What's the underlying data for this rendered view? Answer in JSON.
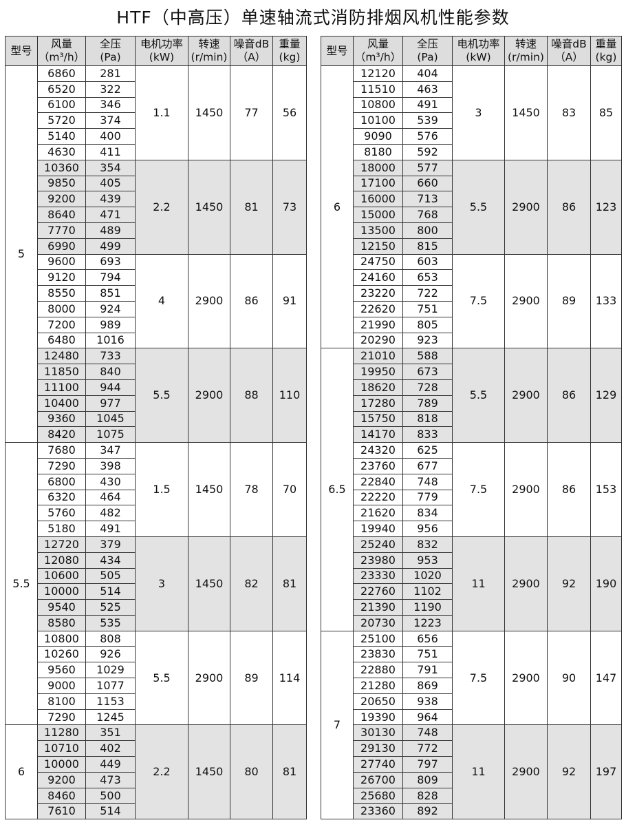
{
  "title": "HTF（中高压）单速轴流式消防排烟风机性能参数",
  "headers": [
    "型号",
    "风量\n（m³/h）",
    "全压\n(Pa)",
    "电机功率\n(kW)",
    "转速\n(r/min)",
    "噪音dB\n（A）",
    "重量\n(kg)"
  ],
  "tables": [
    {
      "models": [
        {
          "model": "5",
          "groups": [
            {
              "power": "1.1",
              "speed": "1450",
              "noise": "77",
              "weight": "56",
              "rows": [
                [
                  "6860",
                  "281"
                ],
                [
                  "6520",
                  "322"
                ],
                [
                  "6100",
                  "346"
                ],
                [
                  "5720",
                  "374"
                ],
                [
                  "5140",
                  "400"
                ],
                [
                  "4630",
                  "411"
                ]
              ]
            },
            {
              "power": "2.2",
              "speed": "1450",
              "noise": "81",
              "weight": "73",
              "rows": [
                [
                  "10360",
                  "354"
                ],
                [
                  "9850",
                  "405"
                ],
                [
                  "9200",
                  "439"
                ],
                [
                  "8640",
                  "471"
                ],
                [
                  "7770",
                  "489"
                ],
                [
                  "6990",
                  "499"
                ]
              ]
            },
            {
              "power": "4",
              "speed": "2900",
              "noise": "86",
              "weight": "91",
              "rows": [
                [
                  "9600",
                  "693"
                ],
                [
                  "9120",
                  "794"
                ],
                [
                  "8550",
                  "851"
                ],
                [
                  "8000",
                  "924"
                ],
                [
                  "7200",
                  "989"
                ],
                [
                  "6480",
                  "1016"
                ]
              ]
            },
            {
              "power": "5.5",
              "speed": "2900",
              "noise": "88",
              "weight": "110",
              "rows": [
                [
                  "12480",
                  "733"
                ],
                [
                  "11850",
                  "840"
                ],
                [
                  "11100",
                  "944"
                ],
                [
                  "10400",
                  "977"
                ],
                [
                  "9360",
                  "1045"
                ],
                [
                  "8420",
                  "1075"
                ]
              ]
            }
          ]
        },
        {
          "model": "5.5",
          "groups": [
            {
              "power": "1.5",
              "speed": "1450",
              "noise": "78",
              "weight": "70",
              "rows": [
                [
                  "7680",
                  "347"
                ],
                [
                  "7290",
                  "398"
                ],
                [
                  "6800",
                  "430"
                ],
                [
                  "6320",
                  "464"
                ],
                [
                  "5760",
                  "482"
                ],
                [
                  "5180",
                  "491"
                ]
              ]
            },
            {
              "power": "3",
              "speed": "1450",
              "noise": "82",
              "weight": "81",
              "rows": [
                [
                  "12720",
                  "379"
                ],
                [
                  "12080",
                  "434"
                ],
                [
                  "10600",
                  "505"
                ],
                [
                  "10000",
                  "514"
                ],
                [
                  "9540",
                  "525"
                ],
                [
                  "8580",
                  "535"
                ]
              ]
            },
            {
              "power": "5.5",
              "speed": "2900",
              "noise": "89",
              "weight": "114",
              "rows": [
                [
                  "10800",
                  "808"
                ],
                [
                  "10260",
                  "926"
                ],
                [
                  "9560",
                  "1029"
                ],
                [
                  "9000",
                  "1077"
                ],
                [
                  "8100",
                  "1153"
                ],
                [
                  "7290",
                  "1245"
                ]
              ]
            }
          ]
        },
        {
          "model": "6",
          "groups": [
            {
              "power": "2.2",
              "speed": "1450",
              "noise": "80",
              "weight": "81",
              "rows": [
                [
                  "11280",
                  "351"
                ],
                [
                  "10710",
                  "402"
                ],
                [
                  "10000",
                  "449"
                ],
                [
                  "9200",
                  "473"
                ],
                [
                  "8460",
                  "500"
                ],
                [
                  "7610",
                  "514"
                ]
              ]
            }
          ]
        }
      ]
    },
    {
      "models": [
        {
          "model": "6",
          "groups": [
            {
              "power": "3",
              "speed": "1450",
              "noise": "83",
              "weight": "85",
              "rows": [
                [
                  "12120",
                  "404"
                ],
                [
                  "11510",
                  "463"
                ],
                [
                  "10800",
                  "491"
                ],
                [
                  "10100",
                  "539"
                ],
                [
                  "9090",
                  "576"
                ],
                [
                  "8180",
                  "592"
                ]
              ]
            },
            {
              "power": "5.5",
              "speed": "2900",
              "noise": "86",
              "weight": "123",
              "rows": [
                [
                  "18000",
                  "577"
                ],
                [
                  "17100",
                  "660"
                ],
                [
                  "16000",
                  "713"
                ],
                [
                  "15000",
                  "768"
                ],
                [
                  "13500",
                  "800"
                ],
                [
                  "12150",
                  "815"
                ]
              ]
            },
            {
              "power": "7.5",
              "speed": "2900",
              "noise": "89",
              "weight": "133",
              "rows": [
                [
                  "24750",
                  "603"
                ],
                [
                  "24160",
                  "653"
                ],
                [
                  "23220",
                  "722"
                ],
                [
                  "22620",
                  "751"
                ],
                [
                  "21990",
                  "805"
                ],
                [
                  "20290",
                  "923"
                ]
              ]
            }
          ]
        },
        {
          "model": "6.5",
          "groups": [
            {
              "power": "5.5",
              "speed": "2900",
              "noise": "86",
              "weight": "129",
              "rows": [
                [
                  "21010",
                  "588"
                ],
                [
                  "19950",
                  "673"
                ],
                [
                  "18620",
                  "728"
                ],
                [
                  "17280",
                  "789"
                ],
                [
                  "15750",
                  "818"
                ],
                [
                  "14170",
                  "833"
                ]
              ]
            },
            {
              "power": "7.5",
              "speed": "2900",
              "noise": "86",
              "weight": "153",
              "rows": [
                [
                  "24320",
                  "625"
                ],
                [
                  "23760",
                  "677"
                ],
                [
                  "22840",
                  "748"
                ],
                [
                  "22220",
                  "779"
                ],
                [
                  "21620",
                  "834"
                ],
                [
                  "19940",
                  "956"
                ]
              ]
            },
            {
              "power": "11",
              "speed": "2900",
              "noise": "92",
              "weight": "190",
              "rows": [
                [
                  "25240",
                  "832"
                ],
                [
                  "23980",
                  "953"
                ],
                [
                  "23330",
                  "1020"
                ],
                [
                  "22760",
                  "1102"
                ],
                [
                  "21390",
                  "1190"
                ],
                [
                  "20730",
                  "1223"
                ]
              ]
            }
          ]
        },
        {
          "model": "7",
          "groups": [
            {
              "power": "7.5",
              "speed": "2900",
              "noise": "90",
              "weight": "147",
              "rows": [
                [
                  "25100",
                  "656"
                ],
                [
                  "23830",
                  "751"
                ],
                [
                  "22880",
                  "791"
                ],
                [
                  "21280",
                  "869"
                ],
                [
                  "20650",
                  "938"
                ],
                [
                  "19390",
                  "964"
                ]
              ]
            },
            {
              "power": "11",
              "speed": "2900",
              "noise": "92",
              "weight": "197",
              "rows": [
                [
                  "30130",
                  "748"
                ],
                [
                  "29130",
                  "772"
                ],
                [
                  "27740",
                  "797"
                ],
                [
                  "26700",
                  "809"
                ],
                [
                  "25680",
                  "828"
                ],
                [
                  "23360",
                  "892"
                ]
              ]
            }
          ]
        }
      ]
    }
  ]
}
